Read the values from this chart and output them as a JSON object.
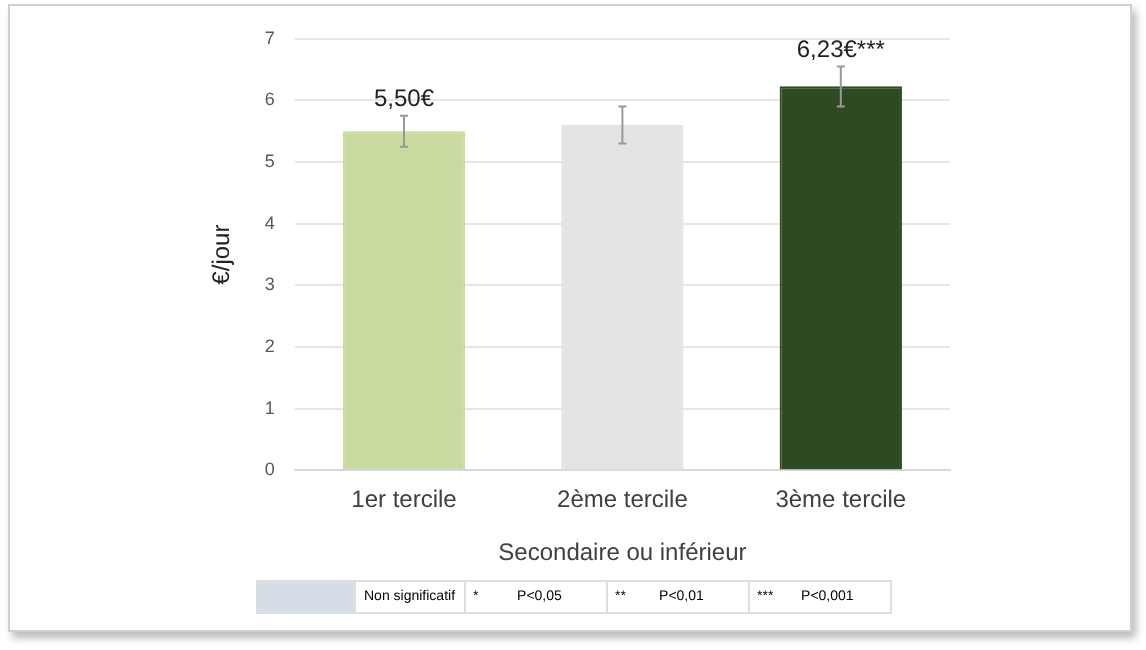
{
  "chart_data": {
    "type": "bar",
    "xlabel": "Secondaire ou inférieur",
    "ylabel": "€/jour",
    "categories": [
      "1er tercile",
      "2ème tercile",
      "3ème tercile"
    ],
    "values": [
      5.5,
      5.6,
      6.23
    ],
    "colors": [
      "#c9dba1",
      "#e3e3e3",
      "#2e4a22"
    ],
    "errors": [
      [
        5.25,
        5.75
      ],
      [
        5.3,
        5.9
      ],
      [
        5.9,
        6.55
      ]
    ],
    "value_labels": [
      "5,50€",
      null,
      "6,23€***"
    ],
    "ylim": [
      0,
      7
    ],
    "yticks": [
      0,
      1,
      2,
      3,
      4,
      5,
      6,
      7
    ],
    "grid": "y",
    "legend": false,
    "annotations": [
      "Non significatif",
      "*",
      "P<0,05",
      "**",
      "P<0,01",
      "***",
      "P<0,001"
    ]
  }
}
